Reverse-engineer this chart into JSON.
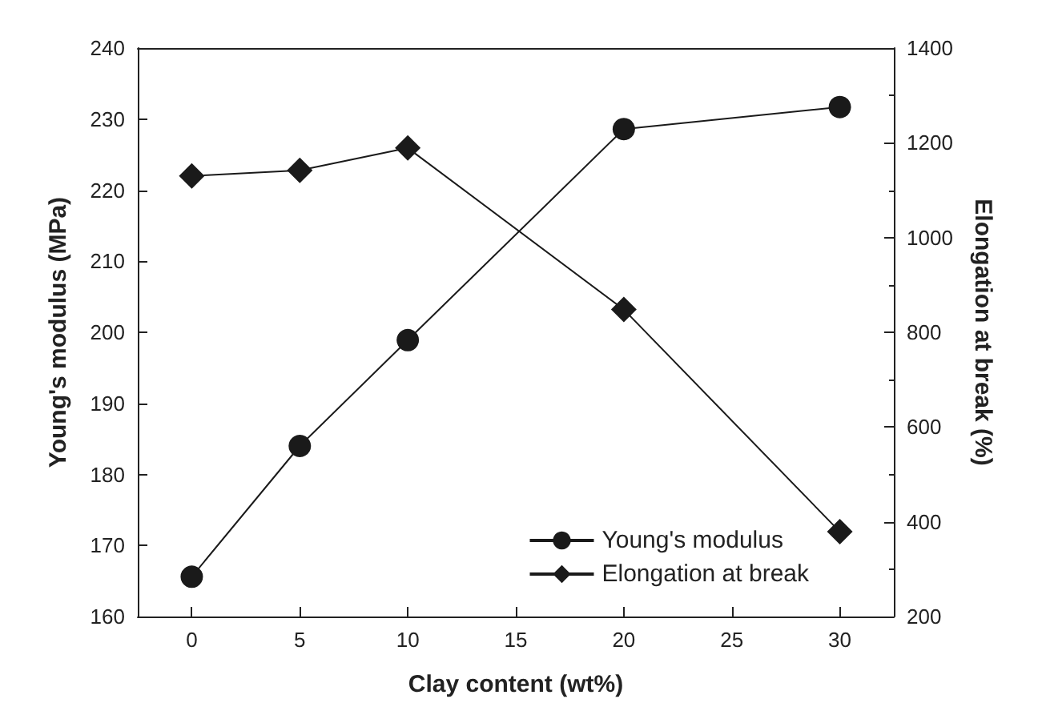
{
  "chart_data": {
    "type": "line",
    "xlabel": "Clay content (wt%)",
    "ylabel": "Young's modulus (MPa)",
    "y2label": "Elongation at break (%)",
    "x": [
      0,
      5,
      10,
      20,
      30
    ],
    "xlim": [
      -2.5,
      32.5
    ],
    "xticks": [
      0,
      5,
      10,
      15,
      20,
      25,
      30
    ],
    "ylim": [
      160,
      240
    ],
    "yticks": [
      160,
      170,
      180,
      190,
      200,
      210,
      220,
      230,
      240
    ],
    "y2lim": [
      200,
      1400
    ],
    "y2ticks": [
      200,
      400,
      600,
      800,
      1000,
      1200,
      1400
    ],
    "legend": "bottom right",
    "grid": false,
    "line_style": "solid",
    "series": [
      {
        "name": "Young's modulus",
        "color": "#1a1a1a",
        "marker": "circle",
        "values": [
          165.6,
          184,
          198.9,
          228.6,
          231.7
        ]
      },
      {
        "name": "Elongation at break",
        "color": "#1a1a1a",
        "marker": "diamond",
        "axis": "y2",
        "values": [
          1130,
          1142,
          1189,
          848,
          379
        ]
      }
    ]
  }
}
